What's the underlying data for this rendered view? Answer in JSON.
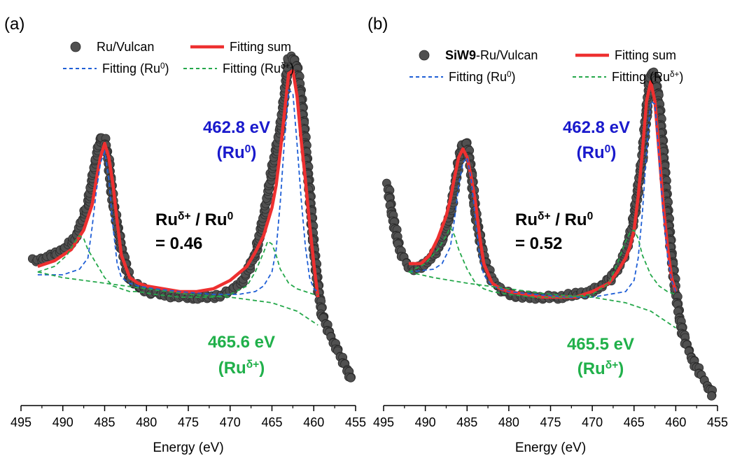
{
  "colors": {
    "data": "#505050",
    "sum": "#ee3030",
    "ru0": "#1f5fd6",
    "rud": "#25a84b",
    "ann_ru0": "#1a1acc",
    "ann_rud": "#20b04a",
    "text": "#000000"
  },
  "chart_data": [
    {
      "type": "scatter",
      "panel_label": "(a)",
      "xlabel": "Energy (eV)",
      "ylabel": "",
      "xlim": [
        495,
        455
      ],
      "x_reversed": true,
      "xticks": [
        495,
        490,
        485,
        480,
        475,
        470,
        465,
        460,
        455
      ],
      "yticks": [],
      "legend": {
        "placement": "top",
        "items": [
          {
            "key": "data",
            "prefix": "",
            "text": "Ru/Vulcan",
            "sup": ""
          },
          {
            "key": "sum",
            "prefix": "",
            "text": "Fitting sum",
            "sup": ""
          },
          {
            "key": "ru0",
            "prefix": "",
            "text": "Fitting (Ru",
            "sup": "0",
            "close": ")"
          },
          {
            "key": "rud",
            "prefix": "",
            "text": "Fitting (Ru",
            "sup": "δ+",
            "close": ")"
          }
        ]
      },
      "annotations": {
        "ru0": {
          "value": "462.8 eV",
          "label_base": "(Ru",
          "label_sup": "0",
          "label_close": ")"
        },
        "rud": {
          "value": "465.6 eV",
          "label_base": "(Ru",
          "label_sup": "δ+",
          "label_close": ")"
        },
        "ratio": {
          "num_base": "Ru",
          "num_sup": "δ+",
          "sep": " / ",
          "den_base": "Ru",
          "den_sup": "0",
          "eq": "= 0.46"
        }
      },
      "series": [
        {
          "name": "Ru/Vulcan",
          "key": "data",
          "x": [
            493.5,
            492,
            490,
            488.5,
            487,
            486,
            485.5,
            485,
            484.5,
            484,
            483,
            482,
            481,
            480,
            478,
            476,
            474,
            472,
            470,
            468.5,
            467,
            466,
            465,
            464,
            463.5,
            463,
            462.5,
            462,
            461.5,
            461,
            460.5,
            460,
            459.5,
            459,
            458,
            457,
            456,
            455.5
          ],
          "y": [
            0.13,
            0.14,
            0.17,
            0.21,
            0.33,
            0.5,
            0.57,
            0.56,
            0.48,
            0.34,
            0.18,
            0.06,
            0.04,
            0.02,
            0.01,
            0.0,
            0.0,
            0.0,
            0.02,
            0.06,
            0.15,
            0.28,
            0.45,
            0.6,
            0.72,
            0.85,
            0.86,
            0.82,
            0.72,
            0.55,
            0.38,
            0.18,
            0.04,
            -0.06,
            -0.14,
            -0.2,
            -0.26,
            -0.3
          ]
        },
        {
          "name": "Fitting sum",
          "key": "sum",
          "x": [
            493,
            491,
            489,
            487.5,
            486.5,
            486,
            485.5,
            485,
            484.5,
            484,
            483.5,
            483,
            482,
            481,
            480,
            478,
            476,
            474,
            472,
            470,
            468,
            467,
            466,
            465,
            464.5,
            464,
            463.5,
            463,
            462.5,
            462,
            461.5,
            461,
            460.5,
            460,
            459.5
          ],
          "y": [
            0.11,
            0.13,
            0.17,
            0.24,
            0.33,
            0.42,
            0.5,
            0.55,
            0.5,
            0.4,
            0.27,
            0.15,
            0.07,
            0.05,
            0.04,
            0.03,
            0.02,
            0.02,
            0.03,
            0.06,
            0.11,
            0.16,
            0.22,
            0.32,
            0.4,
            0.52,
            0.66,
            0.8,
            0.81,
            0.72,
            0.56,
            0.42,
            0.26,
            0.12,
            0.0
          ]
        },
        {
          "name": "Fitting (Ru0)",
          "key": "ru0",
          "x": [
            493,
            490,
            488,
            487,
            486.5,
            486,
            485.5,
            485,
            484.5,
            484,
            483.5,
            483,
            482,
            481,
            479,
            476,
            472,
            469,
            467,
            466,
            465,
            464.5,
            464,
            463.5,
            463,
            462.5,
            462,
            461.5,
            461,
            460.5,
            460,
            459.5
          ],
          "y": [
            0.08,
            0.08,
            0.1,
            0.14,
            0.25,
            0.38,
            0.48,
            0.52,
            0.42,
            0.25,
            0.12,
            0.07,
            0.05,
            0.04,
            0.03,
            0.02,
            0.01,
            0.01,
            0.02,
            0.04,
            0.09,
            0.17,
            0.34,
            0.56,
            0.74,
            0.73,
            0.55,
            0.35,
            0.18,
            0.07,
            0.03,
            0.02
          ]
        },
        {
          "name": "Fitting (Ruδ+)",
          "key": "rud",
          "x": [
            493,
            491,
            489.5,
            488.5,
            488,
            487.5,
            487,
            486,
            485,
            484,
            483,
            482,
            481,
            479,
            476,
            472,
            470,
            468,
            467,
            466,
            465.5,
            465,
            464.5,
            464,
            463,
            462,
            461,
            460,
            459.5
          ],
          "y": [
            0.09,
            0.11,
            0.15,
            0.2,
            0.22,
            0.21,
            0.17,
            0.12,
            0.07,
            0.04,
            0.03,
            0.02,
            0.02,
            0.01,
            0.0,
            0.0,
            0.01,
            0.04,
            0.09,
            0.16,
            0.2,
            0.19,
            0.15,
            0.1,
            0.05,
            0.03,
            0.02,
            0.01,
            0.01
          ]
        },
        {
          "name": "Background",
          "key": "rud",
          "x": [
            493,
            490,
            485,
            480,
            475,
            470,
            465,
            462,
            460,
            459.5
          ],
          "y": [
            0.09,
            0.07,
            0.05,
            0.03,
            0.01,
            0.0,
            -0.02,
            -0.05,
            -0.09,
            -0.1
          ]
        }
      ]
    },
    {
      "type": "scatter",
      "panel_label": "(b)",
      "xlabel": "Energy (eV)",
      "ylabel": "",
      "xlim": [
        495,
        455
      ],
      "x_reversed": true,
      "xticks": [
        495,
        490,
        485,
        480,
        475,
        470,
        465,
        460,
        455
      ],
      "yticks": [],
      "legend": {
        "placement": "top",
        "items": [
          {
            "key": "data",
            "prefix": "SiW9",
            "text": "-Ru/Vulcan",
            "sup": ""
          },
          {
            "key": "sum",
            "prefix": "",
            "text": "Fitting sum",
            "sup": ""
          },
          {
            "key": "ru0",
            "prefix": "",
            "text": "Fitting (Ru",
            "sup": "0",
            "close": ")"
          },
          {
            "key": "rud",
            "prefix": "",
            "text": "Fitting (Ru",
            "sup": "δ+",
            "close": ")"
          }
        ]
      },
      "annotations": {
        "ru0": {
          "value": "462.8 eV",
          "label_base": "(Ru",
          "label_sup": "0",
          "label_close": ")"
        },
        "rud": {
          "value": "465.5 eV",
          "label_base": "(Ru",
          "label_sup": "δ+",
          "label_close": ")"
        },
        "ratio": {
          "num_base": "Ru",
          "num_sup": "δ+",
          "sep": " / ",
          "den_base": "Ru",
          "den_sup": "0",
          "eq": "= 0.52"
        }
      },
      "series": [
        {
          "name": "SiW9-Ru/Vulcan",
          "key": "data",
          "x": [
            494.5,
            494,
            493,
            492,
            491,
            490,
            489,
            488,
            487,
            486,
            485.5,
            485,
            484.5,
            484,
            483,
            482,
            481,
            480,
            478,
            476,
            474,
            472,
            470,
            468,
            467,
            466,
            465,
            464,
            463.5,
            463,
            462.5,
            462,
            461.5,
            461,
            460.5,
            460,
            459.5,
            459,
            458,
            457,
            456,
            455.5
          ],
          "y": [
            0.4,
            0.3,
            0.16,
            0.11,
            0.1,
            0.12,
            0.15,
            0.2,
            0.3,
            0.48,
            0.55,
            0.55,
            0.45,
            0.3,
            0.14,
            0.06,
            0.03,
            0.01,
            0.0,
            0.0,
            0.0,
            0.01,
            0.02,
            0.06,
            0.1,
            0.16,
            0.28,
            0.5,
            0.66,
            0.8,
            0.8,
            0.7,
            0.52,
            0.32,
            0.15,
            0.02,
            -0.08,
            -0.15,
            -0.22,
            -0.28,
            -0.32,
            -0.36
          ]
        },
        {
          "name": "Fitting sum",
          "key": "sum",
          "x": [
            492,
            490.5,
            489.5,
            488.5,
            487.5,
            487,
            486.5,
            486,
            485.5,
            485,
            484.5,
            484,
            483.5,
            483,
            482,
            481,
            480,
            478,
            476,
            474,
            472,
            470,
            468,
            467,
            466,
            465.5,
            465,
            464.5,
            464,
            463.5,
            463,
            462.5,
            462,
            461.5,
            461,
            460.5,
            460
          ],
          "y": [
            0.12,
            0.12,
            0.15,
            0.21,
            0.29,
            0.35,
            0.43,
            0.5,
            0.53,
            0.5,
            0.43,
            0.34,
            0.22,
            0.12,
            0.05,
            0.03,
            0.02,
            0.01,
            0.0,
            0.0,
            0.0,
            0.02,
            0.05,
            0.09,
            0.14,
            0.18,
            0.24,
            0.36,
            0.52,
            0.7,
            0.77,
            0.7,
            0.52,
            0.33,
            0.18,
            0.07,
            0.02
          ]
        },
        {
          "name": "Fitting (Ru0)",
          "key": "ru0",
          "x": [
            492,
            489,
            488,
            487,
            486.5,
            486,
            485.5,
            485,
            484.5,
            484,
            483.5,
            483,
            482,
            480,
            477,
            473,
            470,
            468,
            466,
            465,
            464.5,
            464,
            463.5,
            463,
            462.5,
            462,
            461.5,
            461,
            460.5,
            460
          ],
          "y": [
            0.09,
            0.1,
            0.12,
            0.18,
            0.28,
            0.4,
            0.48,
            0.5,
            0.42,
            0.28,
            0.15,
            0.08,
            0.04,
            0.02,
            0.01,
            0.0,
            0.0,
            0.01,
            0.02,
            0.06,
            0.14,
            0.3,
            0.52,
            0.7,
            0.69,
            0.5,
            0.3,
            0.15,
            0.06,
            0.02
          ]
        },
        {
          "name": "Fitting (Ruδ+)",
          "key": "rud",
          "x": [
            492,
            490,
            488.5,
            487.5,
            487,
            486.5,
            486,
            485,
            484,
            483,
            482,
            480,
            477,
            473,
            470,
            468,
            467,
            466,
            465.5,
            465,
            464.5,
            464,
            463,
            462,
            461,
            460
          ],
          "y": [
            0.09,
            0.12,
            0.17,
            0.22,
            0.25,
            0.22,
            0.17,
            0.1,
            0.05,
            0.03,
            0.02,
            0.01,
            0.0,
            0.0,
            0.01,
            0.05,
            0.12,
            0.2,
            0.23,
            0.24,
            0.21,
            0.15,
            0.08,
            0.04,
            0.02,
            0.01
          ]
        },
        {
          "name": "Background",
          "key": "rud",
          "x": [
            492,
            489,
            485,
            480,
            475,
            470,
            466,
            463,
            461,
            460
          ],
          "y": [
            0.09,
            0.07,
            0.05,
            0.03,
            0.01,
            0.0,
            -0.02,
            -0.05,
            -0.09,
            -0.11
          ]
        }
      ]
    }
  ]
}
